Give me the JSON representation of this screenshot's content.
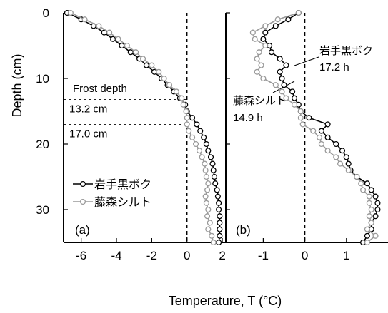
{
  "ylabel": "Depth (cm)",
  "xlabel": "Temperature, T (°C)",
  "chart_data": [
    {
      "type": "line",
      "panel_label": "(a)",
      "xlim": [
        -7,
        2.2
      ],
      "ylim": [
        35,
        0
      ],
      "y_ticks": [
        0,
        10,
        20,
        30
      ],
      "x_ticks": [
        -6,
        -4,
        -2,
        0,
        2
      ],
      "x_tick_labels": [
        "-6",
        "-4",
        "-2",
        "0",
        "2"
      ],
      "zero_line": true,
      "annotations": [
        {
          "text": "Frost depth",
          "depth": 12.6
        },
        {
          "text": "13.2 cm",
          "depth": 13.2
        },
        {
          "text": "17.0 cm",
          "depth": 17.0
        }
      ],
      "legend": {
        "placement": "bottom-left",
        "entries": [
          "岩手黒ボク",
          "藤森シルト"
        ]
      },
      "series": [
        {
          "name": "岩手黒ボク",
          "color": "#000000",
          "points": [
            [
              -6.8,
              0
            ],
            [
              -6.0,
              1
            ],
            [
              -5.3,
              2
            ],
            [
              -4.7,
              3
            ],
            [
              -4.2,
              4
            ],
            [
              -3.7,
              5
            ],
            [
              -3.2,
              6
            ],
            [
              -2.7,
              7
            ],
            [
              -2.3,
              8
            ],
            [
              -1.85,
              9
            ],
            [
              -1.45,
              10
            ],
            [
              -1.1,
              11
            ],
            [
              -0.75,
              12
            ],
            [
              -0.4,
              13
            ],
            [
              -0.1,
              14
            ],
            [
              0.0,
              15
            ],
            [
              0.3,
              16
            ],
            [
              0.55,
              17
            ],
            [
              0.75,
              18
            ],
            [
              0.95,
              19
            ],
            [
              1.1,
              20
            ],
            [
              1.2,
              21
            ],
            [
              1.35,
              22
            ],
            [
              1.45,
              23
            ],
            [
              1.5,
              24
            ],
            [
              1.55,
              25
            ],
            [
              1.6,
              26
            ],
            [
              1.7,
              27
            ],
            [
              1.75,
              28
            ],
            [
              1.8,
              29
            ],
            [
              1.8,
              30
            ],
            [
              1.85,
              31
            ],
            [
              1.85,
              32
            ],
            [
              1.85,
              33
            ],
            [
              1.85,
              34
            ],
            [
              1.8,
              35
            ]
          ]
        },
        {
          "name": "藤森シルト",
          "color": "#999999",
          "points": [
            [
              -6.6,
              0
            ],
            [
              -5.8,
              1
            ],
            [
              -5.0,
              2
            ],
            [
              -4.4,
              3
            ],
            [
              -3.9,
              4
            ],
            [
              -3.4,
              5
            ],
            [
              -2.9,
              6
            ],
            [
              -2.5,
              7
            ],
            [
              -2.0,
              8
            ],
            [
              -1.6,
              9
            ],
            [
              -1.3,
              10
            ],
            [
              -1.0,
              11
            ],
            [
              -0.6,
              12
            ],
            [
              -0.3,
              13
            ],
            [
              -0.2,
              14
            ],
            [
              -0.05,
              15
            ],
            [
              0.0,
              16
            ],
            [
              0.0,
              17
            ],
            [
              0.1,
              18
            ],
            [
              0.3,
              19
            ],
            [
              0.5,
              20
            ],
            [
              0.7,
              21
            ],
            [
              0.85,
              22
            ],
            [
              1.0,
              23
            ],
            [
              1.05,
              24
            ],
            [
              1.1,
              25
            ],
            [
              1.2,
              26
            ],
            [
              1.15,
              27
            ],
            [
              1.05,
              28
            ],
            [
              1.1,
              29
            ],
            [
              1.2,
              30
            ],
            [
              1.15,
              31
            ],
            [
              1.3,
              32
            ],
            [
              1.2,
              33
            ],
            [
              1.4,
              34
            ],
            [
              1.5,
              35
            ]
          ]
        }
      ]
    },
    {
      "type": "line",
      "panel_label": "(b)",
      "xlim": [
        -1.9,
        2.0
      ],
      "ylim": [
        35,
        0
      ],
      "y_ticks": [
        0,
        10,
        20,
        30
      ],
      "x_ticks": [
        -1,
        0,
        1
      ],
      "x_tick_labels": [
        "-1",
        "0",
        "1"
      ],
      "zero_line": true,
      "annotations": [
        {
          "text": "岩手黒ボク",
          "depth": 5.0
        },
        {
          "text": "17.2 h",
          "depth": 8.8
        },
        {
          "text": "藤森シルト",
          "depth": 13.0
        },
        {
          "text": "14.9 h",
          "depth": 16.3
        }
      ],
      "series": [
        {
          "name": "岩手黒ボク",
          "color": "#000000",
          "points": [
            [
              -0.15,
              0
            ],
            [
              -0.4,
              1
            ],
            [
              -0.7,
              2
            ],
            [
              -0.95,
              3
            ],
            [
              -1.0,
              4
            ],
            [
              -0.85,
              5
            ],
            [
              -0.8,
              6
            ],
            [
              -0.6,
              7
            ],
            [
              -0.45,
              8
            ],
            [
              -0.6,
              9
            ],
            [
              -0.55,
              10
            ],
            [
              -0.5,
              11
            ],
            [
              -0.3,
              12
            ],
            [
              -0.25,
              13
            ],
            [
              -0.15,
              14
            ],
            [
              -0.1,
              15
            ],
            [
              0.1,
              16
            ],
            [
              0.55,
              17
            ],
            [
              0.4,
              18
            ],
            [
              0.55,
              19
            ],
            [
              0.75,
              20
            ],
            [
              0.9,
              21
            ],
            [
              1.0,
              22
            ],
            [
              1.05,
              23
            ],
            [
              1.1,
              24
            ],
            [
              1.25,
              25
            ],
            [
              1.5,
              26
            ],
            [
              1.6,
              27
            ],
            [
              1.7,
              28
            ],
            [
              1.75,
              29
            ],
            [
              1.75,
              30
            ],
            [
              1.7,
              31
            ],
            [
              1.6,
              32
            ],
            [
              1.6,
              33
            ],
            [
              1.5,
              34
            ],
            [
              1.4,
              35
            ]
          ]
        },
        {
          "name": "藤森シルト",
          "color": "#999999",
          "points": [
            [
              -0.15,
              0
            ],
            [
              -0.65,
              1
            ],
            [
              -0.95,
              2
            ],
            [
              -1.25,
              3
            ],
            [
              -1.2,
              4
            ],
            [
              -0.95,
              5
            ],
            [
              -1.1,
              6
            ],
            [
              -1.15,
              7
            ],
            [
              -1.05,
              8
            ],
            [
              -1.15,
              9
            ],
            [
              -1.0,
              10
            ],
            [
              -0.7,
              11
            ],
            [
              -0.55,
              12
            ],
            [
              -0.45,
              13
            ],
            [
              -0.25,
              14
            ],
            [
              -0.1,
              15
            ],
            [
              -0.1,
              16
            ],
            [
              -0.05,
              17
            ],
            [
              0.2,
              18
            ],
            [
              0.35,
              19
            ],
            [
              0.4,
              20
            ],
            [
              0.55,
              21
            ],
            [
              0.75,
              22
            ],
            [
              0.85,
              23
            ],
            [
              1.05,
              24
            ],
            [
              1.25,
              25
            ],
            [
              1.35,
              26
            ],
            [
              1.4,
              27
            ],
            [
              1.55,
              28
            ],
            [
              1.55,
              29
            ],
            [
              1.6,
              30
            ],
            [
              1.55,
              31
            ],
            [
              1.6,
              32
            ],
            [
              1.5,
              33
            ],
            [
              1.7,
              34
            ],
            [
              1.5,
              35
            ]
          ]
        }
      ]
    }
  ]
}
